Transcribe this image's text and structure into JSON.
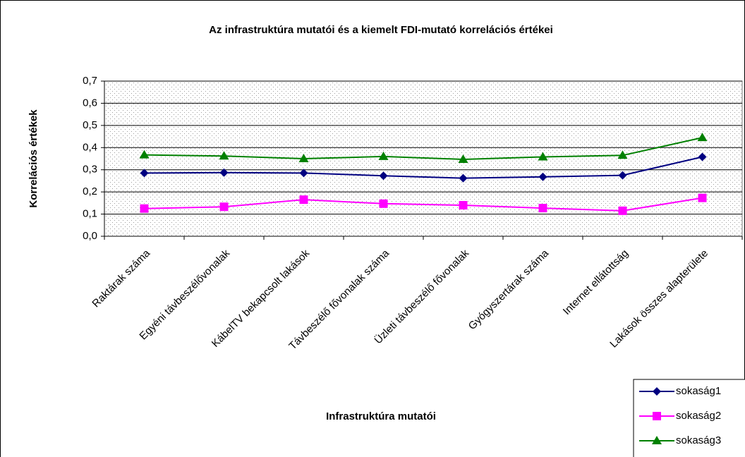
{
  "chart_data": {
    "type": "line",
    "title": "Az infrastruktúra mutatói és a kiemelt FDI-mutató korrelációs értékei",
    "x_label": "Infrastruktúra mutatói",
    "y_label": "Korrelációs értékek",
    "categories": [
      "Raktárak száma",
      "Egyéni távbeszélővonalak",
      "KábelTV bekapcsolt lakások",
      "Távbeszélő fővonalak száma",
      "Üzleti távbeszélő fővonalak",
      "Gyógyszertárak száma",
      "Internet ellátottság",
      "Lakások összes alapterülete"
    ],
    "series": [
      {
        "name": "sokaság1",
        "color": "#000080",
        "marker": "diamond",
        "values": [
          0.285,
          0.287,
          0.285,
          0.273,
          0.262,
          0.268,
          0.275,
          0.358
        ]
      },
      {
        "name": "sokaság2",
        "color": "#ff00ff",
        "marker": "square",
        "values": [
          0.125,
          0.133,
          0.165,
          0.147,
          0.14,
          0.127,
          0.115,
          0.173
        ]
      },
      {
        "name": "sokaság3",
        "color": "#008000",
        "marker": "triangle",
        "values": [
          0.367,
          0.362,
          0.35,
          0.36,
          0.347,
          0.358,
          0.365,
          0.445
        ]
      }
    ],
    "ylim": [
      0,
      0.7
    ],
    "yticks": [
      {
        "value": 0,
        "label": "0,0"
      },
      {
        "value": 0.1,
        "label": "0,1"
      },
      {
        "value": 0.2,
        "label": "0,2"
      },
      {
        "value": 0.3,
        "label": "0,3"
      },
      {
        "value": 0.4,
        "label": "0,4"
      },
      {
        "value": 0.5,
        "label": "0,5"
      },
      {
        "value": 0.6,
        "label": "0,6"
      },
      {
        "value": 0.7,
        "label": "0,7"
      }
    ],
    "grid": true,
    "legend": "lower right"
  }
}
